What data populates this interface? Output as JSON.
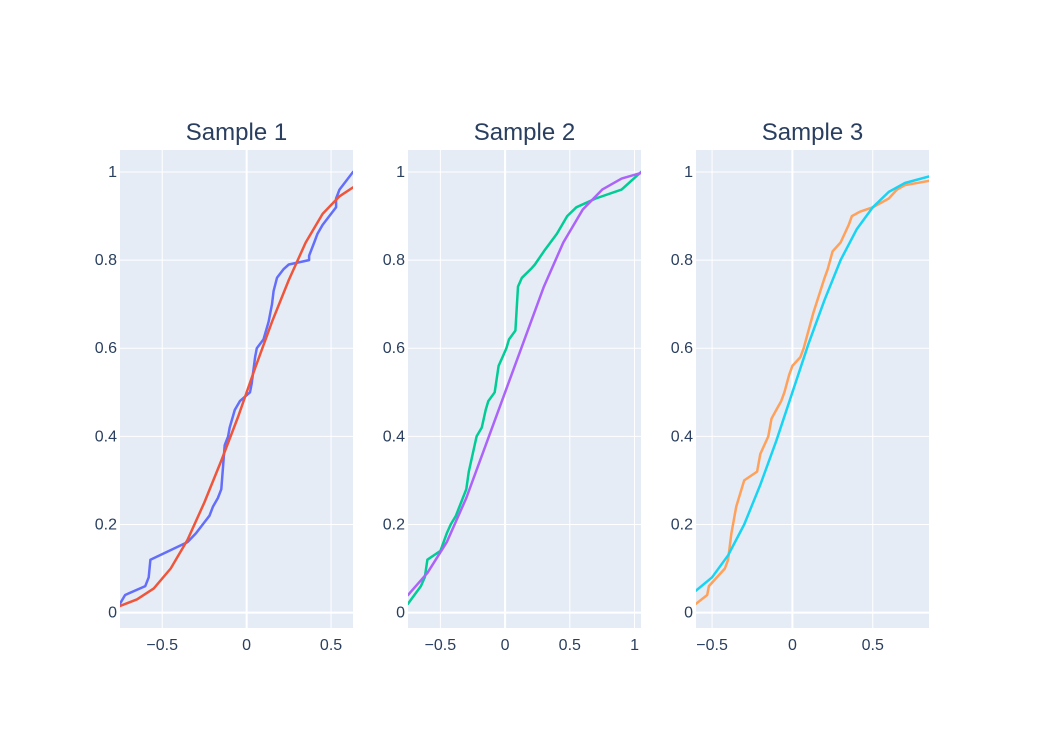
{
  "chart_data": [
    {
      "type": "line",
      "title": "Sample 1",
      "xlim": [
        -0.75,
        0.63
      ],
      "ylim": [
        -0.035,
        1.05
      ],
      "xticks": [
        -0.5,
        0,
        0.5
      ],
      "xtick_labels": [
        "−0.5",
        "0",
        "0.5"
      ],
      "yticks": [
        0,
        0.2,
        0.4,
        0.6,
        0.8,
        1
      ],
      "ytick_labels": [
        "0",
        "0.2",
        "0.4",
        "0.6",
        "0.8",
        "1"
      ],
      "grid": true,
      "series": [
        {
          "kind": "empirical",
          "color": "#636efa",
          "x": [
            -0.75,
            -0.72,
            -0.6,
            -0.58,
            -0.57,
            -0.35,
            -0.3,
            -0.26,
            -0.22,
            -0.2,
            -0.17,
            -0.15,
            -0.13,
            -0.11,
            -0.1,
            -0.07,
            -0.04,
            0.02,
            0.03,
            0.05,
            0.06,
            0.1,
            0.13,
            0.15,
            0.16,
            0.18,
            0.22,
            0.25,
            0.37,
            0.37,
            0.4,
            0.42,
            0.45,
            0.53,
            0.53,
            0.55,
            0.63
          ],
          "y": [
            0.02,
            0.04,
            0.06,
            0.08,
            0.12,
            0.16,
            0.18,
            0.2,
            0.22,
            0.24,
            0.26,
            0.28,
            0.38,
            0.4,
            0.42,
            0.46,
            0.48,
            0.5,
            0.52,
            0.58,
            0.6,
            0.62,
            0.66,
            0.7,
            0.73,
            0.76,
            0.78,
            0.79,
            0.8,
            0.81,
            0.84,
            0.86,
            0.88,
            0.92,
            0.94,
            0.96,
            1.0
          ]
        },
        {
          "kind": "theoretical",
          "color": "#ef553b",
          "x": [
            -0.75,
            -0.65,
            -0.55,
            -0.45,
            -0.35,
            -0.25,
            -0.15,
            -0.05,
            0.05,
            0.15,
            0.25,
            0.35,
            0.45,
            0.55,
            0.63
          ],
          "y": [
            0.015,
            0.03,
            0.055,
            0.1,
            0.165,
            0.25,
            0.345,
            0.445,
            0.555,
            0.66,
            0.755,
            0.84,
            0.905,
            0.945,
            0.965
          ]
        }
      ]
    },
    {
      "type": "line",
      "title": "Sample 2",
      "xlim": [
        -0.75,
        1.05
      ],
      "ylim": [
        -0.035,
        1.05
      ],
      "xticks": [
        -0.5,
        0,
        0.5,
        1
      ],
      "xtick_labels": [
        "−0.5",
        "0",
        "0.5",
        "1"
      ],
      "yticks": [
        0,
        0.2,
        0.4,
        0.6,
        0.8,
        1
      ],
      "ytick_labels": [
        "0",
        "0.2",
        "0.4",
        "0.6",
        "0.8",
        "1"
      ],
      "grid": true,
      "series": [
        {
          "kind": "empirical",
          "color": "#00cc96",
          "x": [
            -0.75,
            -0.65,
            -0.62,
            -0.6,
            -0.5,
            -0.45,
            -0.42,
            -0.38,
            -0.3,
            -0.28,
            -0.25,
            -0.22,
            -0.18,
            -0.15,
            -0.13,
            -0.08,
            -0.05,
            -0.02,
            0.01,
            0.03,
            0.08,
            0.1,
            0.13,
            0.2,
            0.23,
            0.3,
            0.4,
            0.48,
            0.55,
            0.7,
            0.9,
            1.05
          ],
          "y": [
            0.02,
            0.06,
            0.08,
            0.12,
            0.14,
            0.18,
            0.2,
            0.22,
            0.28,
            0.32,
            0.36,
            0.4,
            0.42,
            0.46,
            0.48,
            0.5,
            0.56,
            0.58,
            0.6,
            0.62,
            0.64,
            0.74,
            0.76,
            0.78,
            0.79,
            0.82,
            0.86,
            0.9,
            0.92,
            0.94,
            0.96,
            1.0
          ]
        },
        {
          "kind": "theoretical",
          "color": "#ab63fa",
          "x": [
            -0.75,
            -0.6,
            -0.45,
            -0.3,
            -0.15,
            0.0,
            0.15,
            0.3,
            0.45,
            0.6,
            0.75,
            0.9,
            1.05
          ],
          "y": [
            0.04,
            0.09,
            0.16,
            0.26,
            0.38,
            0.5,
            0.62,
            0.74,
            0.84,
            0.915,
            0.96,
            0.985,
            0.998
          ]
        }
      ]
    },
    {
      "type": "line",
      "title": "Sample 3",
      "xlim": [
        -0.6,
        0.85
      ],
      "ylim": [
        -0.035,
        1.05
      ],
      "xticks": [
        -0.5,
        0,
        0.5
      ],
      "xtick_labels": [
        "−0.5",
        "0",
        "0.5"
      ],
      "yticks": [
        0,
        0.2,
        0.4,
        0.6,
        0.8,
        1
      ],
      "ytick_labels": [
        "0",
        "0.2",
        "0.4",
        "0.6",
        "0.8",
        "1"
      ],
      "grid": true,
      "series": [
        {
          "kind": "empirical",
          "color": "#ffa15a",
          "x": [
            -0.6,
            -0.53,
            -0.52,
            -0.42,
            -0.4,
            -0.38,
            -0.37,
            -0.35,
            -0.3,
            -0.22,
            -0.2,
            -0.15,
            -0.13,
            -0.1,
            -0.07,
            -0.05,
            -0.02,
            0.0,
            0.05,
            0.07,
            0.1,
            0.13,
            0.2,
            0.22,
            0.25,
            0.3,
            0.35,
            0.37,
            0.42,
            0.5,
            0.6,
            0.65,
            0.7,
            0.85
          ],
          "y": [
            0.02,
            0.04,
            0.06,
            0.1,
            0.12,
            0.18,
            0.2,
            0.24,
            0.3,
            0.32,
            0.36,
            0.4,
            0.44,
            0.46,
            0.48,
            0.5,
            0.54,
            0.56,
            0.58,
            0.6,
            0.64,
            0.68,
            0.76,
            0.78,
            0.82,
            0.84,
            0.88,
            0.9,
            0.91,
            0.92,
            0.94,
            0.96,
            0.97,
            0.98
          ]
        },
        {
          "kind": "theoretical",
          "color": "#19d3f3",
          "x": [
            -0.6,
            -0.5,
            -0.4,
            -0.3,
            -0.2,
            -0.1,
            0.0,
            0.1,
            0.2,
            0.3,
            0.4,
            0.5,
            0.6,
            0.7,
            0.85
          ],
          "y": [
            0.05,
            0.08,
            0.13,
            0.2,
            0.29,
            0.39,
            0.5,
            0.61,
            0.71,
            0.8,
            0.87,
            0.92,
            0.955,
            0.975,
            0.99
          ]
        }
      ]
    }
  ]
}
